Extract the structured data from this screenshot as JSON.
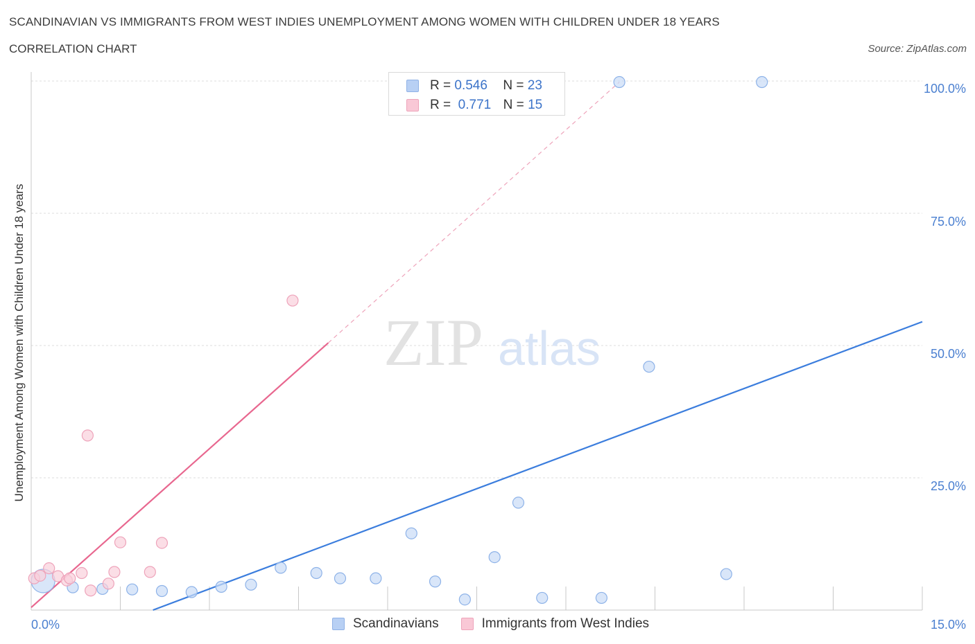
{
  "header": {
    "title": "SCANDINAVIAN VS IMMIGRANTS FROM WEST INDIES UNEMPLOYMENT AMONG WOMEN WITH CHILDREN UNDER 18 YEARS",
    "subtitle": "CORRELATION CHART",
    "source": "Source: ZipAtlas.com"
  },
  "legend_stats": [
    {
      "r_label": "R =",
      "r_value": "0.546",
      "n_label": "N =",
      "n_value": "23",
      "color": "#b8d0f4",
      "border": "#8fb1e6"
    },
    {
      "r_label": "R =",
      "r_value": "0.771",
      "n_label": "N =",
      "n_value": "15",
      "color": "#f9c8d6",
      "border": "#eea3ba"
    }
  ],
  "watermark": {
    "zip": "ZIP",
    "atlas": "atlas"
  },
  "chart_data": {
    "type": "scatter",
    "ylabel": "Unemployment Among Women with Children Under 18 years",
    "xlim": [
      0,
      15
    ],
    "ylim": [
      0,
      100
    ],
    "x_tick_labels": [
      "0.0%",
      "15.0%"
    ],
    "y_ticks": [
      {
        "value": 100,
        "label": "100.0%"
      },
      {
        "value": 75,
        "label": "75.0%"
      },
      {
        "value": 50,
        "label": "50.0%"
      },
      {
        "value": 25,
        "label": "25.0%"
      }
    ],
    "grid": true,
    "series": [
      {
        "name": "Scandinavians",
        "color": "#3b7ddd",
        "fill": "#c9dcf7",
        "stroke": "#8db2e8",
        "points": [
          {
            "x": 0.2,
            "y": 5.5,
            "big": true
          },
          {
            "x": 0.7,
            "y": 4.3
          },
          {
            "x": 1.2,
            "y": 4.0
          },
          {
            "x": 1.7,
            "y": 3.9
          },
          {
            "x": 2.2,
            "y": 3.6
          },
          {
            "x": 2.7,
            "y": 3.4
          },
          {
            "x": 3.2,
            "y": 4.4
          },
          {
            "x": 3.7,
            "y": 4.8
          },
          {
            "x": 4.2,
            "y": 8.0
          },
          {
            "x": 4.8,
            "y": 7.0
          },
          {
            "x": 5.2,
            "y": 6.0
          },
          {
            "x": 5.8,
            "y": 6.0
          },
          {
            "x": 6.4,
            "y": 14.5
          },
          {
            "x": 6.8,
            "y": 5.4
          },
          {
            "x": 7.3,
            "y": 2.0
          },
          {
            "x": 7.8,
            "y": 10.0
          },
          {
            "x": 8.2,
            "y": 20.3
          },
          {
            "x": 8.6,
            "y": 2.3
          },
          {
            "x": 9.6,
            "y": 2.3
          },
          {
            "x": 10.4,
            "y": 46.0
          },
          {
            "x": 11.7,
            "y": 6.8
          },
          {
            "x": 9.9,
            "y": 99.8
          },
          {
            "x": 12.3,
            "y": 99.8
          }
        ],
        "trend": {
          "x0": 2.05,
          "y0": 0,
          "x1": 15,
          "y1": 54.5
        }
      },
      {
        "name": "Immigrants from West Indies",
        "color": "#e8678f",
        "fill": "#f9d0dc",
        "stroke": "#eea3ba",
        "points": [
          {
            "x": 0.05,
            "y": 6.0
          },
          {
            "x": 0.3,
            "y": 7.9
          },
          {
            "x": 0.45,
            "y": 6.4
          },
          {
            "x": 0.6,
            "y": 5.6
          },
          {
            "x": 0.65,
            "y": 6.0
          },
          {
            "x": 0.85,
            "y": 7.0
          },
          {
            "x": 0.95,
            "y": 33.0
          },
          {
            "x": 1.0,
            "y": 3.7
          },
          {
            "x": 1.3,
            "y": 5.0
          },
          {
            "x": 1.4,
            "y": 7.2
          },
          {
            "x": 1.5,
            "y": 12.8
          },
          {
            "x": 2.0,
            "y": 7.2
          },
          {
            "x": 2.2,
            "y": 12.7
          },
          {
            "x": 4.4,
            "y": 58.5
          },
          {
            "x": 0.15,
            "y": 6.5
          }
        ],
        "trend": {
          "x0": 0,
          "y0": 0.5,
          "x1": 5.0,
          "y1": 50.5
        },
        "trend_dashed": {
          "x0": 5.0,
          "y0": 50.5,
          "x1": 9.9,
          "y1": 99.8
        }
      }
    ]
  }
}
